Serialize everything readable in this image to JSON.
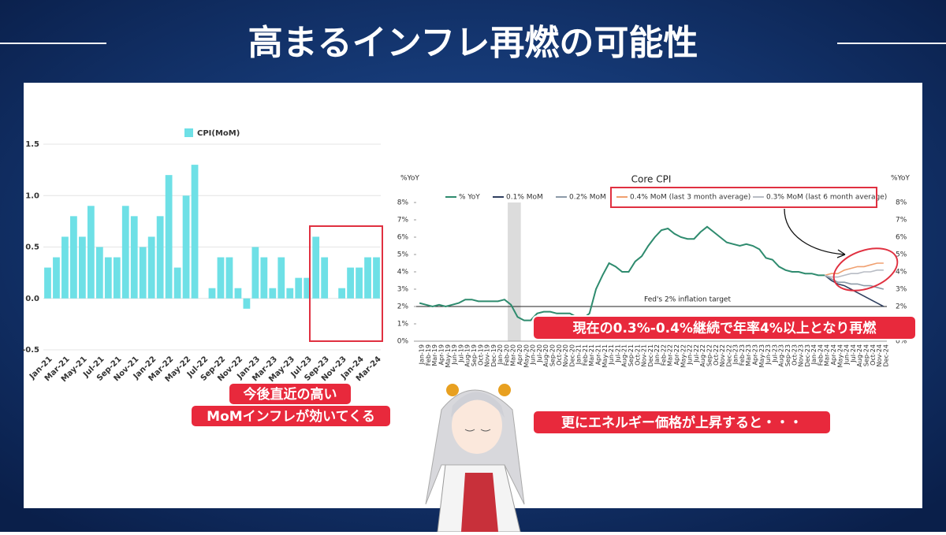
{
  "title": "高まるインフレ再燃の可能性",
  "callouts": {
    "left": [
      "今後直近の高い",
      "MoMインフレが効いてくる"
    ],
    "middle": "現在の0.3%-0.4%継続で年率4%以上となり再燃",
    "bottom": "更にエネルギー価格が上昇すると・・・"
  },
  "chart_data": [
    {
      "type": "bar",
      "series": [
        {
          "name": "CPI(MoM)",
          "color": "#6ee0e6",
          "values": [
            0.3,
            0.4,
            0.6,
            0.8,
            0.6,
            0.9,
            0.5,
            0.4,
            0.4,
            0.9,
            0.8,
            0.5,
            0.6,
            0.8,
            1.2,
            0.3,
            1.0,
            1.3,
            0.0,
            0.1,
            0.4,
            0.4,
            0.1,
            -0.1,
            0.5,
            0.4,
            0.1,
            0.4,
            0.1,
            0.2,
            0.2,
            0.6,
            0.4,
            0.0,
            0.1,
            0.3,
            0.3,
            0.4,
            0.4
          ]
        }
      ],
      "categories": [
        "Jan-21",
        null,
        "Mar-21",
        null,
        "May-21",
        null,
        "Jul-21",
        null,
        "Sep-21",
        null,
        "Nov-21",
        null,
        "Jan-22",
        null,
        "Mar-22",
        null,
        "May-22",
        null,
        "Jul-22",
        null,
        "Sep-22",
        null,
        "Nov-22",
        null,
        "Jan-23",
        null,
        "Mar-23",
        null,
        "May-23",
        null,
        "Jul-23",
        null,
        "Sep-23",
        null,
        "Nov-23",
        null,
        "Jan-24",
        null,
        "Mar-24"
      ],
      "ylim": [
        -0.5,
        1.5
      ],
      "yticks": [
        -0.5,
        {
          "value": 0,
          "label": "0.0"
        },
        0.5,
        {
          "value": 1,
          "label": "1.0"
        },
        1.5
      ],
      "grid": true,
      "legend": "top"
    },
    {
      "type": "line",
      "title": "Core CPI",
      "ylabel": "%YoY",
      "y2label": "%YoY",
      "categories": [
        "Jan-19",
        "Feb-19",
        "Mar-19",
        "Apr-19",
        "May-19",
        "Jun-19",
        "Jul-19",
        "Aug-19",
        "Sep-19",
        "Oct-19",
        "Nov-19",
        "Dec-19",
        "Jan-20",
        "Feb-20",
        "Mar-20",
        "Apr-20",
        "May-20",
        "Jun-20",
        "Jul-20",
        "Aug-20",
        "Sep-20",
        "Oct-20",
        "Nov-20",
        "Dec-20",
        "Jan-21",
        "Feb-21",
        "Mar-21",
        "Apr-21",
        "May-21",
        "Jun-21",
        "Jul-21",
        "Aug-21",
        "Sep-21",
        "Oct-21",
        "Nov-21",
        "Dec-21",
        "Jan-22",
        "Feb-22",
        "Mar-22",
        "Apr-22",
        "May-22",
        "Jun-22",
        "Jul-22",
        "Aug-22",
        "Sep-22",
        "Oct-22",
        "Nov-22",
        "Dec-22",
        "Jan-23",
        "Feb-23",
        "Mar-23",
        "Apr-23",
        "May-23",
        "Jun-23",
        "Jul-23",
        "Aug-23",
        "Sep-23",
        "Oct-23",
        "Nov-23",
        "Dec-23",
        "Jan-24",
        "Feb-24",
        "Mar-24",
        "Apr-24",
        "May-24",
        "Jun-24",
        "Jul-24",
        "Aug-24",
        "Sep-24",
        "Oct-24",
        "Nov-24",
        "Dec-24"
      ],
      "series": [
        {
          "name": "% YoY",
          "color": "#2e8b6e",
          "values": [
            2.2,
            2.1,
            2.0,
            2.1,
            2.0,
            2.1,
            2.2,
            2.4,
            2.4,
            2.3,
            2.3,
            2.3,
            2.3,
            2.4,
            2.1,
            1.4,
            1.2,
            1.2,
            1.6,
            1.7,
            1.7,
            1.6,
            1.6,
            1.6,
            1.4,
            1.3,
            1.6,
            3.0,
            3.8,
            4.5,
            4.3,
            4.0,
            4.0,
            4.6,
            4.9,
            5.5,
            6.0,
            6.4,
            6.5,
            6.2,
            6.0,
            5.9,
            5.9,
            6.3,
            6.6,
            6.3,
            6.0,
            5.7,
            5.6,
            5.5,
            5.6,
            5.5,
            5.3,
            4.8,
            4.7,
            4.3,
            4.1,
            4.0,
            4.0,
            3.9,
            3.9,
            3.8,
            3.8,
            null,
            null,
            null,
            null,
            null,
            null,
            null,
            null,
            null
          ]
        },
        {
          "name": "0.1% MoM",
          "color": "#2f3f5f",
          "values": [
            null,
            null,
            null,
            null,
            null,
            null,
            null,
            null,
            null,
            null,
            null,
            null,
            null,
            null,
            null,
            null,
            null,
            null,
            null,
            null,
            null,
            null,
            null,
            null,
            null,
            null,
            null,
            null,
            null,
            null,
            null,
            null,
            null,
            null,
            null,
            null,
            null,
            null,
            null,
            null,
            null,
            null,
            null,
            null,
            null,
            null,
            null,
            null,
            null,
            null,
            null,
            null,
            null,
            null,
            null,
            null,
            null,
            null,
            null,
            null,
            null,
            null,
            3.8,
            3.5,
            3.3,
            3.2,
            3.0,
            2.8,
            2.6,
            2.4,
            2.2,
            2.0
          ]
        },
        {
          "name": "0.2% MoM",
          "color": "#8c9aa8",
          "values": [
            null,
            null,
            null,
            null,
            null,
            null,
            null,
            null,
            null,
            null,
            null,
            null,
            null,
            null,
            null,
            null,
            null,
            null,
            null,
            null,
            null,
            null,
            null,
            null,
            null,
            null,
            null,
            null,
            null,
            null,
            null,
            null,
            null,
            null,
            null,
            null,
            null,
            null,
            null,
            null,
            null,
            null,
            null,
            null,
            null,
            null,
            null,
            null,
            null,
            null,
            null,
            null,
            null,
            null,
            null,
            null,
            null,
            null,
            null,
            null,
            null,
            null,
            3.8,
            3.6,
            3.4,
            3.4,
            3.3,
            3.3,
            3.2,
            3.2,
            3.1,
            3.0
          ]
        },
        {
          "name": "0.4% MoM (last 3 month average)",
          "color": "#f0a070",
          "values": [
            null,
            null,
            null,
            null,
            null,
            null,
            null,
            null,
            null,
            null,
            null,
            null,
            null,
            null,
            null,
            null,
            null,
            null,
            null,
            null,
            null,
            null,
            null,
            null,
            null,
            null,
            null,
            null,
            null,
            null,
            null,
            null,
            null,
            null,
            null,
            null,
            null,
            null,
            null,
            null,
            null,
            null,
            null,
            null,
            null,
            null,
            null,
            null,
            null,
            null,
            null,
            null,
            null,
            null,
            null,
            null,
            null,
            null,
            null,
            null,
            null,
            null,
            3.8,
            3.9,
            3.9,
            4.1,
            4.2,
            4.3,
            4.3,
            4.4,
            4.5,
            4.5
          ]
        },
        {
          "name": "0.3% MoM (last 6 month average)",
          "color": "#b8bcc4",
          "values": [
            null,
            null,
            null,
            null,
            null,
            null,
            null,
            null,
            null,
            null,
            null,
            null,
            null,
            null,
            null,
            null,
            null,
            null,
            null,
            null,
            null,
            null,
            null,
            null,
            null,
            null,
            null,
            null,
            null,
            null,
            null,
            null,
            null,
            null,
            null,
            null,
            null,
            null,
            null,
            null,
            null,
            null,
            null,
            null,
            null,
            null,
            null,
            null,
            null,
            null,
            null,
            null,
            null,
            null,
            null,
            null,
            null,
            null,
            null,
            null,
            null,
            null,
            3.8,
            3.7,
            3.7,
            3.8,
            3.9,
            3.9,
            4.0,
            4.0,
            4.1,
            4.1
          ]
        }
      ],
      "ylim": [
        0,
        8
      ],
      "yticks": [
        {
          "value": 0,
          "label": "0%"
        },
        {
          "value": 1,
          "label": "1%"
        },
        {
          "value": 2,
          "label": "2%"
        },
        {
          "value": 3,
          "label": "3%"
        },
        {
          "value": 4,
          "label": "4%"
        },
        {
          "value": 5,
          "label": "5%"
        },
        {
          "value": 6,
          "label": "6%"
        },
        {
          "value": 7,
          "label": "7%"
        },
        {
          "value": 8,
          "label": "8%"
        }
      ],
      "target": {
        "value": 2,
        "label": "Fed's 2% inflation target"
      },
      "shade": {
        "from": "Mar-20",
        "to": "Apr-20",
        "color": "#dcdcdc"
      },
      "legend": "top"
    }
  ]
}
